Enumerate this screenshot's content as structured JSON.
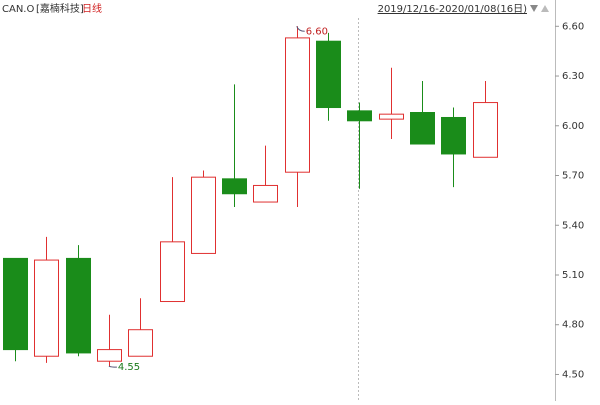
{
  "header": {
    "symbol": "CAN.O",
    "name": "[嘉楠科技]",
    "period": "日线",
    "range": "2019/12/16-2020/01/08(16日)"
  },
  "chart_data": {
    "type": "candlestick",
    "open": [
      5.2,
      4.61,
      5.2,
      4.58,
      4.61,
      4.94,
      5.23,
      5.68,
      5.54,
      5.72,
      6.51,
      6.09,
      6.04,
      6.08,
      6.05,
      5.81
    ],
    "high": [
      5.2,
      5.33,
      5.28,
      4.86,
      4.96,
      5.69,
      5.73,
      6.25,
      5.88,
      6.6,
      6.56,
      6.14,
      6.35,
      6.27,
      6.11,
      6.27
    ],
    "low": [
      4.58,
      4.57,
      4.61,
      4.55,
      4.61,
      4.94,
      5.23,
      5.51,
      5.54,
      5.51,
      6.03,
      5.62,
      5.92,
      5.89,
      5.63,
      5.81
    ],
    "close": [
      4.65,
      5.19,
      4.63,
      4.65,
      4.77,
      5.3,
      5.69,
      5.59,
      5.64,
      6.53,
      6.11,
      6.03,
      6.07,
      5.89,
      5.83,
      6.14
    ],
    "up_color": "#e03030",
    "down_color": "#1a8c1a",
    "ylim": [
      4.34,
      6.65
    ],
    "yticks": [
      {
        "value": 4.5,
        "label": "4.50"
      },
      {
        "value": 4.8,
        "label": "4.80"
      },
      {
        "value": 5.1,
        "label": "5.10"
      },
      {
        "value": 5.4,
        "label": "5.40"
      },
      {
        "value": 5.7,
        "label": "5.70"
      },
      {
        "value": 6.0,
        "label": "6.00"
      },
      {
        "value": 6.3,
        "label": "6.30"
      },
      {
        "value": 6.6,
        "label": "6.60"
      }
    ],
    "annotations": [
      {
        "index": 9,
        "value": 6.6,
        "label": "6.60",
        "color": "#c02020"
      },
      {
        "index": 3,
        "value": 4.55,
        "label": "4.55",
        "color": "#1a7a1a"
      }
    ]
  }
}
